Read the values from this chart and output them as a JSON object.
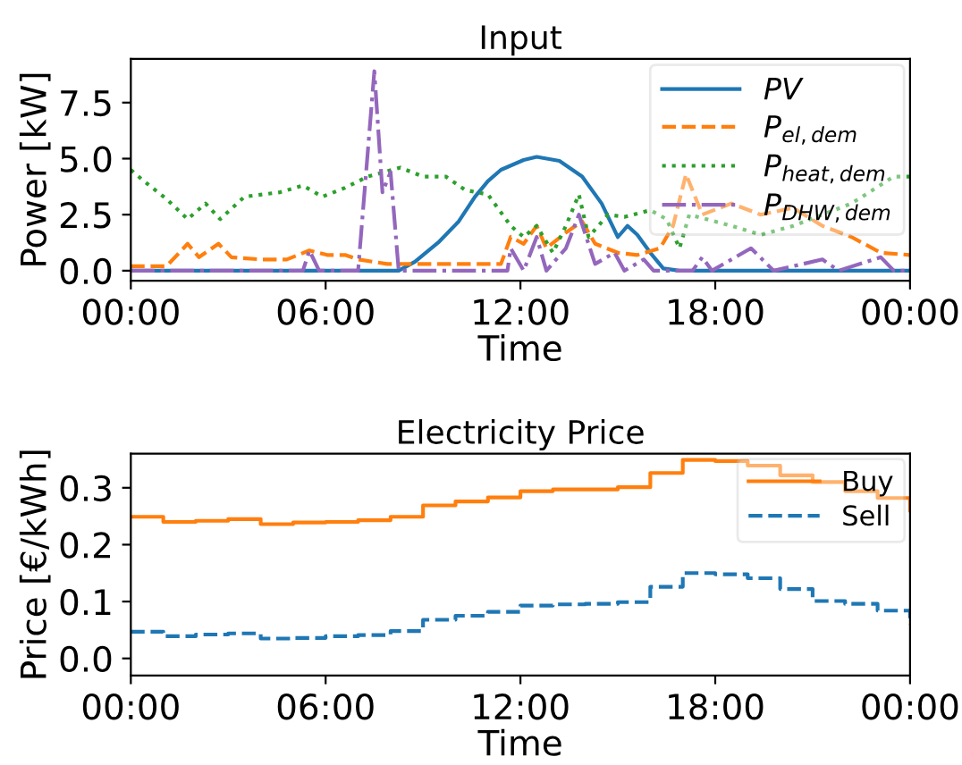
{
  "chart_data": [
    {
      "type": "line",
      "title": "Input",
      "xlabel": "Time",
      "ylabel": "Power [kW]",
      "xlim": [
        0,
        24
      ],
      "xticks": [
        {
          "value": 0,
          "label": "00:00"
        },
        {
          "value": 6,
          "label": "06:00"
        },
        {
          "value": 12,
          "label": "12:00"
        },
        {
          "value": 18,
          "label": "18:00"
        },
        {
          "value": 24,
          "label": "00:00"
        }
      ],
      "ylim": [
        -0.45,
        9.45
      ],
      "yticks": [
        {
          "value": 0,
          "label": "0.0"
        },
        {
          "value": 2.5,
          "label": "2.5"
        },
        {
          "value": 5,
          "label": "5.0"
        },
        {
          "value": 7.5,
          "label": "7.5"
        }
      ],
      "grid": false,
      "legend": "top right",
      "series": [
        {
          "name": "PV",
          "color": "#1f77b4",
          "line_style": "solid",
          "x": [
            0,
            8.25,
            8.75,
            9.5,
            10.1,
            10.6,
            11.0,
            11.4,
            12.1,
            12.5,
            13.2,
            13.9,
            14.5,
            15.0,
            15.3,
            15.6,
            16.0,
            16.4,
            16.9,
            24
          ],
          "values": [
            0,
            0,
            0.4,
            1.3,
            2.2,
            3.3,
            4.0,
            4.5,
            4.94,
            5.08,
            4.9,
            4.2,
            3.0,
            1.5,
            2.0,
            1.6,
            0.8,
            0.1,
            0,
            0
          ]
        },
        {
          "name": "P$_{el,dem}$",
          "color": "#ff7f0e",
          "line_style": "dashed",
          "x": [
            0,
            1.1,
            1.75,
            2.1,
            2.7,
            3.1,
            4.0,
            4.8,
            5.5,
            6.05,
            6.6,
            7.0,
            7.9,
            9.0,
            10.3,
            11.4,
            11.7,
            12.1,
            12.5,
            12.8,
            13.4,
            13.9,
            14.3,
            15.0,
            15.6,
            16.3,
            16.7,
            17.1,
            17.6,
            18.5,
            19.4,
            20.4,
            21.3,
            22.2,
            23.1,
            24
          ],
          "values": [
            0.2,
            0.2,
            1.2,
            0.6,
            1.2,
            0.6,
            0.5,
            0.5,
            0.9,
            0.7,
            0.7,
            0.5,
            0.3,
            0.3,
            0.3,
            0.3,
            1.5,
            1.2,
            2.0,
            1.0,
            1.7,
            2.2,
            1.2,
            0.8,
            0.7,
            1.0,
            2.0,
            4.3,
            2.5,
            3.0,
            2.5,
            2.8,
            2.0,
            1.5,
            0.8,
            0.7
          ]
        },
        {
          "name": "P$_{heat,dem}$",
          "color": "#2ca02c",
          "line_style": "dotted",
          "x": [
            0,
            0.4,
            1.1,
            1.75,
            2.3,
            2.75,
            3.5,
            4.6,
            5.3,
            5.9,
            6.6,
            7.3,
            8.3,
            9.0,
            9.7,
            10.3,
            11.0,
            11.7,
            12.1,
            12.5,
            13.0,
            13.4,
            13.8,
            14.1,
            14.7,
            15.2,
            16.0,
            16.5,
            16.9,
            17.2,
            18.5,
            19.4,
            20.4,
            22.2,
            23.5,
            24
          ],
          "values": [
            4.5,
            4.0,
            3.2,
            2.3,
            3.0,
            2.3,
            3.3,
            3.5,
            3.8,
            3.3,
            3.7,
            4.2,
            4.6,
            4.2,
            4.2,
            3.6,
            3.4,
            2.0,
            1.5,
            2.0,
            0.8,
            2.0,
            3.4,
            1.5,
            2.5,
            2.4,
            2.7,
            2.3,
            1.0,
            2.5,
            2.0,
            1.6,
            2.0,
            3.0,
            4.2,
            4.2
          ]
        },
        {
          "name": "P$_{DHW,dem}$",
          "color": "#9467bd",
          "line_style": "dashdot",
          "x": [
            0,
            5.3,
            5.5,
            5.8,
            7.0,
            7.5,
            7.75,
            8.0,
            8.25,
            11.6,
            11.7,
            12.1,
            12.5,
            12.8,
            13.4,
            13.8,
            14.3,
            14.9,
            15.2,
            15.8,
            16.1,
            17.3,
            17.6,
            17.9,
            19.1,
            19.8,
            21.3,
            21.8,
            23.1,
            23.5,
            24
          ],
          "values": [
            0,
            0,
            0.9,
            0,
            0,
            8.9,
            3.5,
            4.4,
            0,
            0,
            1.0,
            0,
            1.5,
            0,
            1.0,
            2.5,
            0.3,
            0.8,
            0,
            0.5,
            0,
            0,
            0.6,
            0,
            1.0,
            0,
            0.5,
            0,
            0.6,
            0,
            0
          ]
        }
      ]
    },
    {
      "type": "step",
      "title": "Electricity Price",
      "xlabel": "Time",
      "ylabel": "Price [€/kWh]",
      "xlim": [
        0,
        24
      ],
      "xticks": [
        {
          "value": 0,
          "label": "00:00"
        },
        {
          "value": 6,
          "label": "06:00"
        },
        {
          "value": 12,
          "label": "12:00"
        },
        {
          "value": 18,
          "label": "18:00"
        },
        {
          "value": 24,
          "label": "00:00"
        }
      ],
      "ylim": [
        -0.03,
        0.36
      ],
      "yticks": [
        {
          "value": 0,
          "label": "0.0"
        },
        {
          "value": 0.1,
          "label": "0.1"
        },
        {
          "value": 0.2,
          "label": "0.2"
        },
        {
          "value": 0.3,
          "label": "0.3"
        }
      ],
      "grid": false,
      "legend": "top right",
      "x": [
        0,
        1,
        2,
        3,
        4,
        5,
        6,
        7,
        8,
        9,
        10,
        11,
        12,
        13,
        14,
        15,
        16,
        17,
        18,
        19,
        20,
        21,
        22,
        23,
        24
      ],
      "series": [
        {
          "name": "Buy",
          "color": "#ff7f0e",
          "line_style": "solid",
          "values": [
            0.249,
            0.24,
            0.242,
            0.245,
            0.236,
            0.239,
            0.24,
            0.243,
            0.249,
            0.269,
            0.276,
            0.283,
            0.294,
            0.297,
            0.297,
            0.301,
            0.326,
            0.349,
            0.347,
            0.339,
            0.322,
            0.31,
            0.294,
            0.282,
            0.26
          ]
        },
        {
          "name": "Sell",
          "color": "#1f77b4",
          "line_style": "dashed",
          "values": [
            0.047,
            0.039,
            0.042,
            0.044,
            0.035,
            0.036,
            0.039,
            0.041,
            0.048,
            0.068,
            0.075,
            0.082,
            0.093,
            0.095,
            0.096,
            0.099,
            0.126,
            0.15,
            0.148,
            0.141,
            0.122,
            0.101,
            0.096,
            0.084,
            0.06
          ]
        }
      ]
    }
  ]
}
